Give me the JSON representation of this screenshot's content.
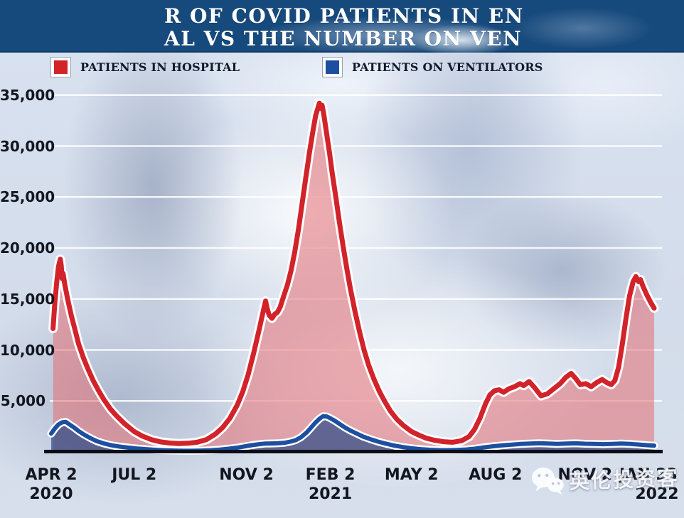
{
  "banner": {
    "line1": "R OF COVID PATIENTS IN EN",
    "line2": "AL VS THE NUMBER ON VEN",
    "bg_color": "#16497c"
  },
  "legend": [
    {
      "label": "PATIENTS IN HOSPITAL",
      "color": "#d42229"
    },
    {
      "label": "PATIENTS ON VENTILATORS",
      "color": "#1d4fa1"
    }
  ],
  "watermark": {
    "text": "英伦投资客",
    "icon": "wechat-icon"
  },
  "chart_data": {
    "type": "area",
    "title_visible": "R OF COVID PATIENTS IN EN / AL VS THE NUMBER ON VEN",
    "ylim": [
      0,
      35000
    ],
    "grid": true,
    "legend_position": "top",
    "x_unit": "days since Apr 2 2020",
    "yticks": [
      {
        "label": "35,000",
        "value": 35000
      },
      {
        "label": "30,000",
        "value": 30000
      },
      {
        "label": "25,000",
        "value": 25000
      },
      {
        "label": "20,000",
        "value": 20000
      },
      {
        "label": "15,000",
        "value": 15000
      },
      {
        "label": "10,000",
        "value": 10000
      },
      {
        "label": "5,000",
        "value": 5000
      }
    ],
    "xticks": [
      {
        "label": "APR 2",
        "year": "2020",
        "day": 0
      },
      {
        "label": "JUL 2",
        "year": "",
        "day": 91
      },
      {
        "label": "NOV 2",
        "year": "",
        "day": 214
      },
      {
        "label": "FEB 2",
        "year": "2021",
        "day": 306
      },
      {
        "label": "MAY 2",
        "year": "",
        "day": 395
      },
      {
        "label": "AUG 2",
        "year": "",
        "day": 487
      },
      {
        "label": "NOV 2",
        "year": "",
        "day": 579,
        "dx": 8
      },
      {
        "label": "JAN 23",
        "year": "2022",
        "day": 661,
        "dx": -8,
        "year_dx": 12
      }
    ],
    "series": [
      {
        "name": "PATIENTS IN HOSPITAL",
        "color": "#d2232b",
        "fill": "rgba(228,110,115,0.55)",
        "points": [
          [
            2,
            12100
          ],
          [
            4,
            14600
          ],
          [
            6,
            16600
          ],
          [
            8,
            18200
          ],
          [
            10,
            18900
          ],
          [
            11,
            18300
          ],
          [
            12,
            17000
          ],
          [
            13,
            17500
          ],
          [
            15,
            16400
          ],
          [
            18,
            15000
          ],
          [
            22,
            13400
          ],
          [
            26,
            12000
          ],
          [
            30,
            10600
          ],
          [
            35,
            9300
          ],
          [
            40,
            8200
          ],
          [
            46,
            7000
          ],
          [
            52,
            6000
          ],
          [
            58,
            5100
          ],
          [
            65,
            4200
          ],
          [
            72,
            3500
          ],
          [
            80,
            2800
          ],
          [
            91,
            2000
          ],
          [
            100,
            1550
          ],
          [
            110,
            1200
          ],
          [
            120,
            980
          ],
          [
            130,
            870
          ],
          [
            140,
            820
          ],
          [
            150,
            850
          ],
          [
            160,
            950
          ],
          [
            170,
            1200
          ],
          [
            180,
            1750
          ],
          [
            188,
            2400
          ],
          [
            196,
            3300
          ],
          [
            204,
            4600
          ],
          [
            210,
            5900
          ],
          [
            216,
            7600
          ],
          [
            222,
            9700
          ],
          [
            228,
            12000
          ],
          [
            232,
            13600
          ],
          [
            234,
            14400
          ],
          [
            235,
            14800
          ],
          [
            237,
            14000
          ],
          [
            239,
            13400
          ],
          [
            242,
            13100
          ],
          [
            245,
            13500
          ],
          [
            248,
            13700
          ],
          [
            251,
            14200
          ],
          [
            255,
            15300
          ],
          [
            259,
            16400
          ],
          [
            263,
            17800
          ],
          [
            267,
            19600
          ],
          [
            271,
            21800
          ],
          [
            275,
            24300
          ],
          [
            279,
            26800
          ],
          [
            283,
            29300
          ],
          [
            287,
            31500
          ],
          [
            290,
            33000
          ],
          [
            292,
            33600
          ],
          [
            294,
            34200
          ],
          [
            295,
            33700
          ],
          [
            297,
            34000
          ],
          [
            299,
            33000
          ],
          [
            302,
            31200
          ],
          [
            305,
            29400
          ],
          [
            308,
            27400
          ],
          [
            312,
            25000
          ],
          [
            316,
            22500
          ],
          [
            320,
            20200
          ],
          [
            324,
            18000
          ],
          [
            328,
            16000
          ],
          [
            333,
            13800
          ],
          [
            338,
            11800
          ],
          [
            343,
            10000
          ],
          [
            348,
            8500
          ],
          [
            354,
            7100
          ],
          [
            360,
            5900
          ],
          [
            366,
            4900
          ],
          [
            372,
            4000
          ],
          [
            379,
            3200
          ],
          [
            386,
            2600
          ],
          [
            395,
            2000
          ],
          [
            403,
            1650
          ],
          [
            411,
            1350
          ],
          [
            420,
            1150
          ],
          [
            430,
            1000
          ],
          [
            440,
            950
          ],
          [
            450,
            1100
          ],
          [
            458,
            1500
          ],
          [
            464,
            2200
          ],
          [
            470,
            3300
          ],
          [
            476,
            4700
          ],
          [
            481,
            5600
          ],
          [
            486,
            6000
          ],
          [
            491,
            6100
          ],
          [
            496,
            5850
          ],
          [
            502,
            6200
          ],
          [
            508,
            6400
          ],
          [
            514,
            6700
          ],
          [
            518,
            6500
          ],
          [
            524,
            6900
          ],
          [
            530,
            6300
          ],
          [
            537,
            5500
          ],
          [
            544,
            5700
          ],
          [
            551,
            6200
          ],
          [
            558,
            6700
          ],
          [
            564,
            7300
          ],
          [
            570,
            7700
          ],
          [
            575,
            7200
          ],
          [
            580,
            6600
          ],
          [
            586,
            6700
          ],
          [
            592,
            6400
          ],
          [
            598,
            6800
          ],
          [
            604,
            7100
          ],
          [
            609,
            6800
          ],
          [
            614,
            6600
          ],
          [
            618,
            7000
          ],
          [
            622,
            8300
          ],
          [
            626,
            10500
          ],
          [
            630,
            13000
          ],
          [
            634,
            15300
          ],
          [
            638,
            16700
          ],
          [
            641,
            17200
          ],
          [
            644,
            16700
          ],
          [
            646,
            16900
          ],
          [
            649,
            16200
          ],
          [
            653,
            15400
          ],
          [
            657,
            14700
          ],
          [
            661,
            14100
          ]
        ]
      },
      {
        "name": "PATIENTS ON VENTILATORS",
        "color": "#1d4fa0",
        "fill": "rgba(10,60,130,0.6)",
        "points": [
          [
            0,
            1800
          ],
          [
            4,
            2300
          ],
          [
            8,
            2700
          ],
          [
            12,
            2900
          ],
          [
            16,
            2950
          ],
          [
            20,
            2700
          ],
          [
            25,
            2400
          ],
          [
            30,
            2050
          ],
          [
            36,
            1700
          ],
          [
            43,
            1350
          ],
          [
            50,
            1050
          ],
          [
            58,
            820
          ],
          [
            66,
            650
          ],
          [
            75,
            520
          ],
          [
            85,
            420
          ],
          [
            95,
            330
          ],
          [
            105,
            260
          ],
          [
            115,
            200
          ],
          [
            125,
            160
          ],
          [
            135,
            130
          ],
          [
            145,
            110
          ],
          [
            155,
            110
          ],
          [
            165,
            130
          ],
          [
            175,
            170
          ],
          [
            185,
            230
          ],
          [
            195,
            320
          ],
          [
            205,
            430
          ],
          [
            213,
            560
          ],
          [
            220,
            660
          ],
          [
            228,
            760
          ],
          [
            235,
            820
          ],
          [
            242,
            830
          ],
          [
            249,
            850
          ],
          [
            256,
            900
          ],
          [
            262,
            1000
          ],
          [
            268,
            1150
          ],
          [
            274,
            1450
          ],
          [
            280,
            1900
          ],
          [
            285,
            2400
          ],
          [
            290,
            2900
          ],
          [
            294,
            3250
          ],
          [
            298,
            3500
          ],
          [
            302,
            3480
          ],
          [
            306,
            3300
          ],
          [
            311,
            3050
          ],
          [
            316,
            2750
          ],
          [
            322,
            2400
          ],
          [
            328,
            2100
          ],
          [
            335,
            1800
          ],
          [
            342,
            1500
          ],
          [
            350,
            1250
          ],
          [
            358,
            1020
          ],
          [
            366,
            830
          ],
          [
            375,
            640
          ],
          [
            385,
            480
          ],
          [
            395,
            360
          ],
          [
            405,
            270
          ],
          [
            415,
            210
          ],
          [
            425,
            175
          ],
          [
            435,
            165
          ],
          [
            445,
            185
          ],
          [
            455,
            240
          ],
          [
            465,
            330
          ],
          [
            475,
            450
          ],
          [
            485,
            560
          ],
          [
            495,
            650
          ],
          [
            505,
            720
          ],
          [
            515,
            780
          ],
          [
            525,
            820
          ],
          [
            535,
            850
          ],
          [
            545,
            820
          ],
          [
            555,
            790
          ],
          [
            565,
            820
          ],
          [
            575,
            840
          ],
          [
            585,
            800
          ],
          [
            595,
            780
          ],
          [
            605,
            760
          ],
          [
            615,
            790
          ],
          [
            625,
            820
          ],
          [
            635,
            780
          ],
          [
            643,
            730
          ],
          [
            650,
            680
          ],
          [
            656,
            640
          ],
          [
            661,
            620
          ]
        ]
      }
    ]
  }
}
